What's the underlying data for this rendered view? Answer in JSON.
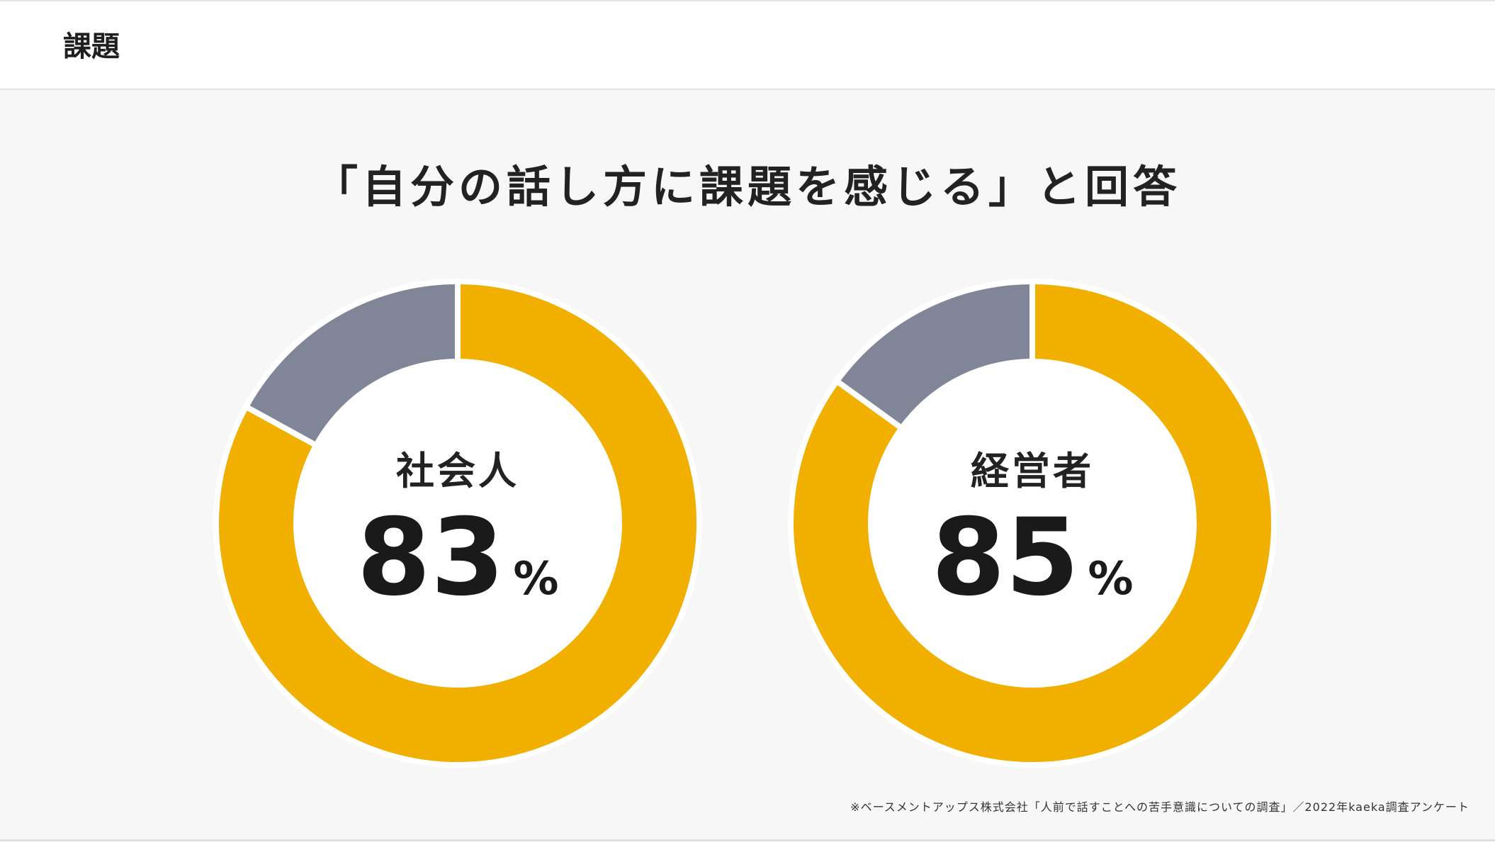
{
  "header": {
    "title": "課題"
  },
  "headline": "「自分の話し方に課題を感じる」と回答",
  "chart_data": [
    {
      "type": "pie",
      "label": "社会人",
      "values": [
        83,
        17
      ],
      "value_text": "83",
      "unit": "%",
      "colors": [
        "#f1af00",
        "#808697"
      ]
    },
    {
      "type": "pie",
      "label": "経営者",
      "values": [
        85,
        15
      ],
      "value_text": "85",
      "unit": "%",
      "colors": [
        "#f1af00",
        "#808697"
      ]
    }
  ],
  "footnote": "※ベースメントアップス株式会社「人前で話すことへの苦手意識についての調査」／2022年kaeka調査アンケート"
}
